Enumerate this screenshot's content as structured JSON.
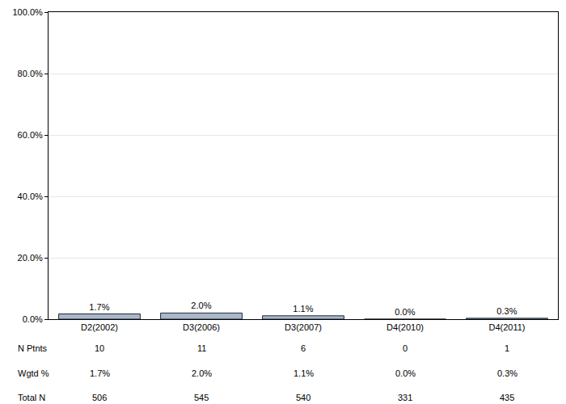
{
  "chart_data": {
    "type": "bar",
    "categories": [
      "D2(2002)",
      "D3(2006)",
      "D3(2007)",
      "D4(2010)",
      "D4(2011)"
    ],
    "values": [
      1.7,
      2.0,
      1.1,
      0.0,
      0.3
    ],
    "value_labels": [
      "1.7%",
      "2.0%",
      "1.1%",
      "0.0%",
      "0.3%"
    ],
    "data_labels": true,
    "color": "#a9b8cb",
    "ylim": [
      0,
      100
    ],
    "yticks": [
      {
        "value": 0,
        "label": "0.0%"
      },
      {
        "value": 20,
        "label": "20.0%"
      },
      {
        "value": 40,
        "label": "40.0%"
      },
      {
        "value": 60,
        "label": "60.0%"
      },
      {
        "value": 80,
        "label": "80.0%"
      },
      {
        "value": 100,
        "label": "100.0%"
      }
    ],
    "grid": true,
    "table_rows": [
      {
        "label": "N Ptnts",
        "values": [
          "10",
          "11",
          "6",
          "0",
          "1"
        ]
      },
      {
        "label": "Wgtd %",
        "values": [
          "1.7%",
          "2.0%",
          "1.1%",
          "0.0%",
          "0.3%"
        ]
      },
      {
        "label": "Total N",
        "values": [
          "506",
          "545",
          "540",
          "331",
          "435"
        ]
      }
    ]
  }
}
